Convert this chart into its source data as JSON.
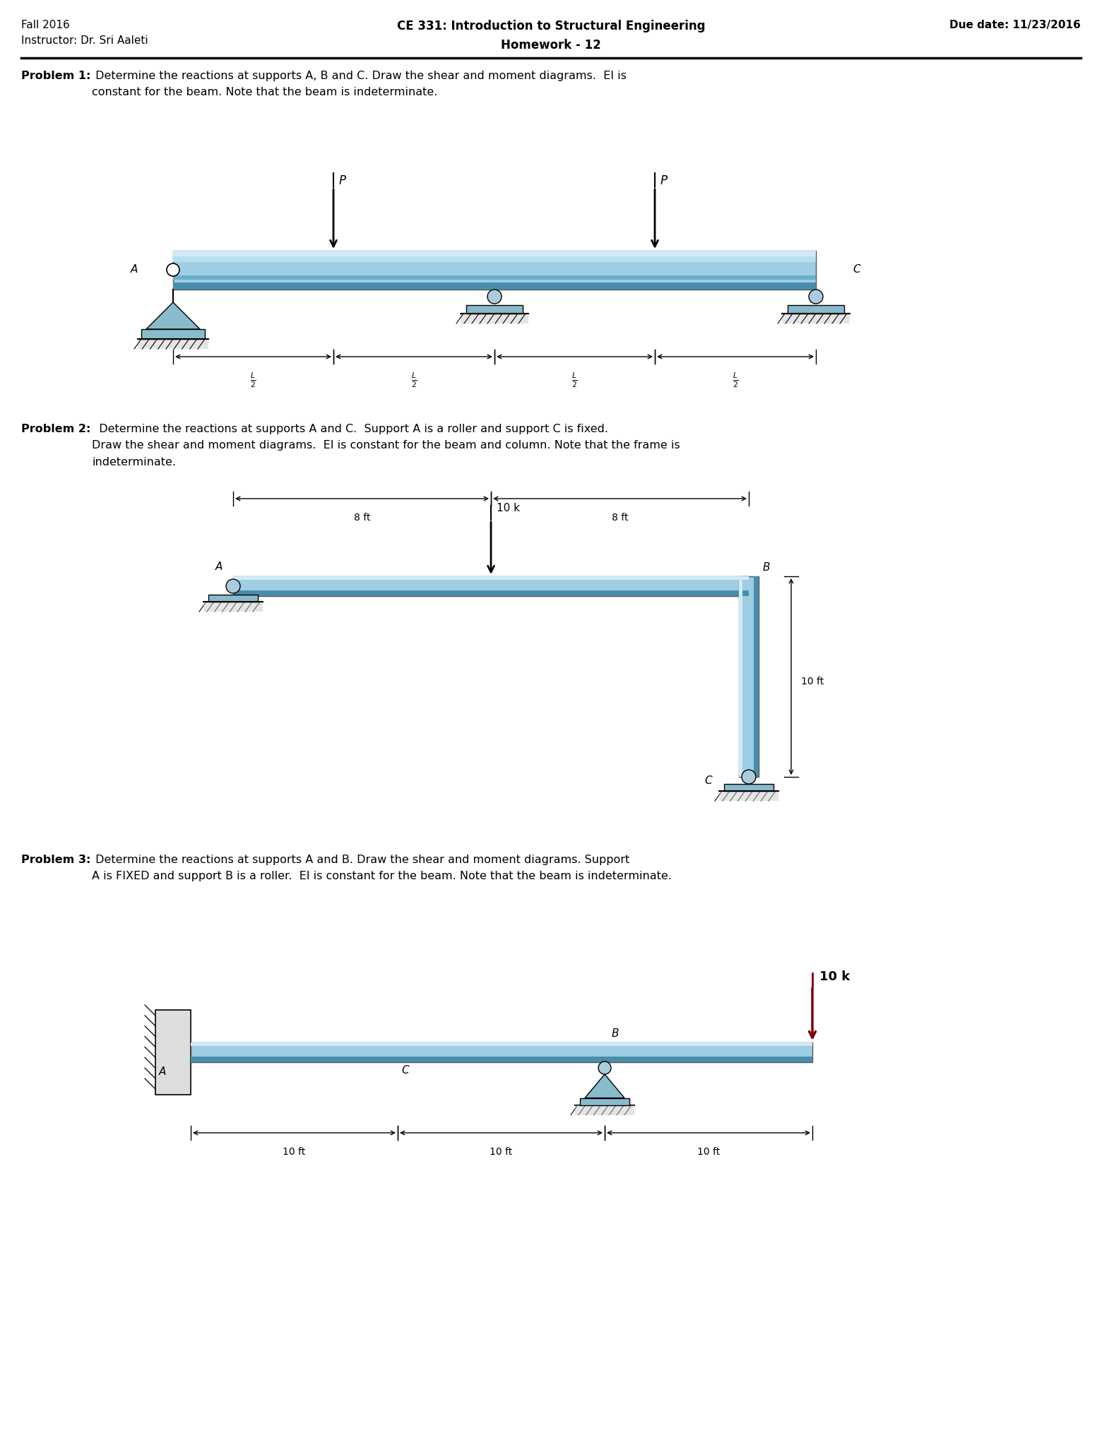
{
  "header_left_line1": "Fall 2016",
  "header_left_line2": "Instructor: Dr. Sri Aaleti",
  "header_right": "Due date: 11/23/2016",
  "title_line1": "CE 331: Introduction to Structural Engineering",
  "title_line2": "Homework - 12",
  "p1_bold": "Problem 1:",
  "p1_rest": " Determine the reactions at supports A, B and C. Draw the shear and moment diagrams.  EI is\nconstant for the beam. Note that the beam is indeterminate.",
  "p2_bold": "Problem 2:",
  "p2_rest": "  Determine the reactions at supports A and C.  Support A is a roller and support C is fixed.\nDraw the shear and moment diagrams.  EI is constant for the beam and column. Note that the frame is\nindeterminate.",
  "p3_bold": "Problem 3:",
  "p3_rest": " Determine the reactions at supports A and B. Draw the shear and moment diagrams. Support\nA is FIXED and support B is a roller.  EI is constant for the beam. Note that the beam is indeterminate.",
  "beam_color": "#9ecde4",
  "beam_color_dark": "#4a8daa",
  "beam_color_top": "#d0eaf8",
  "beam_color_mid": "#6ab0d0",
  "background": "#ffffff"
}
